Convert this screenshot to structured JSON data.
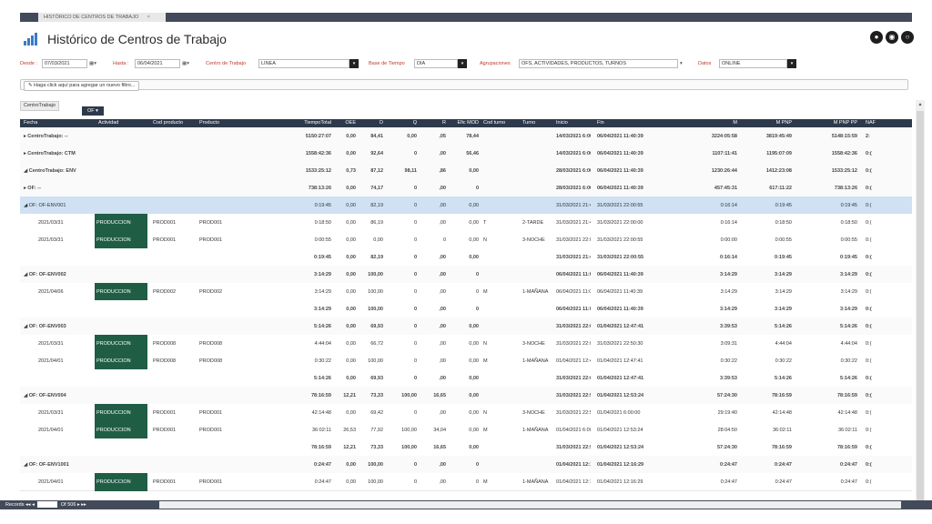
{
  "tab": {
    "label": "HISTÓRICO DE CENTROS DE TRABAJO",
    "close": "×"
  },
  "header": {
    "title": "Histórico de Centros de Trabajo",
    "buttons": [
      "●",
      "◉",
      "○"
    ]
  },
  "filters": {
    "desde_label": "Desde :",
    "desde_value": "07/03/2021",
    "hasta_label": "Hasta :",
    "hasta_value": "06/04/2021",
    "centro_label": "Centro de Trabajo",
    "centro_value": "LINEA",
    "base_label": "Base de Tiempo",
    "base_value": "DIA",
    "agrup_label": "Agrupaciones",
    "agrup_value": "OFS, ACTIVIDADES, PRODUCTOS, TURNOS",
    "datos_label": "Datos",
    "datos_value": "ONLINE"
  },
  "filterbar": {
    "button": "Haga click aquí para agregar un nuevo filtro..."
  },
  "groupzone": {
    "title": "CentroTrabajo",
    "chip": "OF"
  },
  "columns": [
    "Fecha",
    "Actividad",
    "Cod producto",
    "Producto",
    "TiempoTotal",
    "OEE",
    "D",
    "Q",
    "R",
    "Efic MOD",
    "Cod turno",
    "Turno",
    "Inicio",
    "Fin",
    "M",
    "M PNP",
    "M PNP PP",
    "NAF"
  ],
  "rows": [
    {
      "type": "grp",
      "cells": [
        "▸ CentroTrabajo: --",
        "",
        "",
        "",
        "5150:27:07",
        "0,00",
        "84,41",
        "0,00",
        ",05",
        "78,44",
        "",
        "",
        "14/03/2021 6:00:00",
        "06/04/2021 11:40:39",
        "3224:05:58",
        "3819:45:49",
        "5148:15:59",
        "2:"
      ]
    },
    {
      "type": "grp",
      "cells": [
        "▸ CentroTrabajo: CTM",
        "",
        "",
        "",
        "1558:42:36",
        "0,00",
        "92,64",
        "0",
        ",00",
        "56,46",
        "",
        "",
        "14/03/2021 6:00:00",
        "06/04/2021 11:40:39",
        "1107:11:41",
        "1195:07:09",
        "1558:42:36",
        "0:("
      ]
    },
    {
      "type": "grp",
      "cells": [
        "◢ CentroTrabajo: ENV",
        "",
        "",
        "",
        "1533:25:12",
        "0,73",
        "87,12",
        "98,11",
        ",86",
        "0,00",
        "",
        "",
        "28/03/2021 6:00:00",
        "06/04/2021 11:40:39",
        "1230:26:44",
        "1412:23:08",
        "1533:25:12",
        "0:("
      ]
    },
    {
      "type": "grp",
      "cells": [
        "    ▸ OF: --",
        "",
        "",
        "",
        "738:13:26",
        "0,00",
        "74,17",
        "0",
        ",00",
        "0",
        "",
        "",
        "28/03/2021 6:00:00",
        "06/04/2021 11:40:39",
        "457:45:31",
        "617:11:22",
        "738:13:26",
        "0:("
      ]
    },
    {
      "type": "hl",
      "cells": [
        "◢ OF: OF-ENV001",
        "",
        "",
        "",
        "0:19:45",
        "0,00",
        "82,19",
        "0",
        ",00",
        "0,00",
        "",
        "",
        "31/03/2021 21:41:10",
        "31/03/2021 22:00:55",
        "0:16:14",
        "0:19:45",
        "0:19:45",
        "0:("
      ]
    },
    {
      "type": "data",
      "cells": [
        "2021/03/31",
        "PRODUCCION",
        "PROD001",
        "PROD001",
        "0:18:50",
        "0,00",
        "86,19",
        "0",
        ",00",
        "0,00",
        "T",
        "2-TARDE",
        "31/03/2021 21:41:10",
        "31/03/2021 22:00:00",
        "0:16:14",
        "0:18:50",
        "0:18:50",
        "0:("
      ]
    },
    {
      "type": "data",
      "cells": [
        "2021/03/31",
        "PRODUCCION",
        "PROD001",
        "PROD001",
        "0:00:55",
        "0,00",
        "0,00",
        "0",
        "0",
        "0,00",
        "N",
        "3-NOCHE",
        "31/03/2021 22:00:00",
        "31/03/2021 22:00:55",
        "0:00:00",
        "0:00:55",
        "0:00:55",
        "0:("
      ]
    },
    {
      "type": "sum",
      "cells": [
        "",
        "",
        "",
        "",
        "0:19:45",
        "0,00",
        "82,19",
        "0",
        ",00",
        "0,00",
        "",
        "",
        "31/03/2021 21:41:10",
        "31/03/2021 22:00:55",
        "0:16:14",
        "0:19:45",
        "0:19:45",
        "0:("
      ]
    },
    {
      "type": "grp",
      "cells": [
        "◢ OF: OF-ENV002",
        "",
        "",
        "",
        "3:14:29",
        "0,00",
        "100,00",
        "0",
        ",00",
        "0",
        "",
        "",
        "06/04/2021 11:07:41",
        "06/04/2021 11:40:39",
        "3:14:29",
        "3:14:29",
        "3:14:29",
        "0:("
      ]
    },
    {
      "type": "data",
      "cells": [
        "2021/04/06",
        "PRODUCCION",
        "PROD002",
        "PROD002",
        "3:14:29",
        "0,00",
        "100,00",
        "0",
        ",00",
        "0",
        "M",
        "1-MAÑANA",
        "06/04/2021 11:07:41",
        "06/04/2021 11:40:39",
        "3:14:29",
        "3:14:29",
        "3:14:29",
        "0:("
      ]
    },
    {
      "type": "sum",
      "cells": [
        "",
        "",
        "",
        "",
        "3:14:29",
        "0,00",
        "100,00",
        "0",
        ",00",
        "0",
        "",
        "",
        "06/04/2021 11:07:41",
        "06/04/2021 11:40:39",
        "3:14:29",
        "3:14:29",
        "3:14:29",
        "0:("
      ]
    },
    {
      "type": "grp",
      "cells": [
        "◢ OF: OF-ENV003",
        "",
        "",
        "",
        "5:14:26",
        "0,00",
        "69,93",
        "0",
        ",00",
        "0,00",
        "",
        "",
        "31/03/2021 22:01:22",
        "01/04/2021 12:47:41",
        "3:39:53",
        "5:14:26",
        "5:14:26",
        "0:("
      ]
    },
    {
      "type": "data",
      "cells": [
        "2021/03/31",
        "PRODUCCION",
        "PROD008",
        "PROD008",
        "4:44:04",
        "0,00",
        "66,72",
        "0",
        ",00",
        "0,00",
        "N",
        "3-NOCHE",
        "31/03/2021 22:01:22",
        "31/03/2021 22:50:30",
        "3:09:31",
        "4:44:04",
        "4:44:04",
        "0:("
      ]
    },
    {
      "type": "data",
      "cells": [
        "2021/04/01",
        "PRODUCCION",
        "PROD008",
        "PROD008",
        "0:30:22",
        "0,00",
        "100,00",
        "0",
        ",00",
        "0,00",
        "M",
        "1-MAÑANA",
        "01/04/2021 12:42:07",
        "01/04/2021 12:47:41",
        "0:30:22",
        "0:30:22",
        "0:30:22",
        "0:("
      ]
    },
    {
      "type": "sum",
      "cells": [
        "",
        "",
        "",
        "",
        "5:14:26",
        "0,00",
        "69,93",
        "0",
        ",00",
        "0,00",
        "",
        "",
        "31/03/2021 22:01:22",
        "01/04/2021 12:47:41",
        "3:39:53",
        "5:14:26",
        "5:14:26",
        "0:("
      ]
    },
    {
      "type": "grp",
      "cells": [
        "◢ OF: OF-ENV004",
        "",
        "",
        "",
        "78:16:59",
        "12,21",
        "73,33",
        "100,00",
        "16,65",
        "0,00",
        "",
        "",
        "31/03/2021 22:51:25",
        "01/04/2021 12:53:24",
        "57:24:30",
        "78:16:59",
        "78:16:59",
        "0:("
      ]
    },
    {
      "type": "data",
      "cells": [
        "2021/03/31",
        "PRODUCCION",
        "PROD001",
        "PROD001",
        "42:14:48",
        "0,00",
        "69,42",
        "0",
        ",00",
        "0,00",
        "N",
        "3-NOCHE",
        "31/03/2021 22:51:25",
        "01/04/2021 6:00:00",
        "29:19:40",
        "42:14:48",
        "42:14:48",
        "0:("
      ]
    },
    {
      "type": "data",
      "cells": [
        "2021/04/01",
        "PRODUCCION",
        "PROD001",
        "PROD001",
        "36:02:11",
        "26,53",
        "77,92",
        "100,00",
        "34,04",
        "0,00",
        "M",
        "1-MAÑANA",
        "01/04/2021 6:00:00",
        "01/04/2021 12:53:24",
        "28:04:50",
        "36:02:11",
        "36:02:11",
        "0:("
      ]
    },
    {
      "type": "sum",
      "cells": [
        "",
        "",
        "",
        "",
        "78:16:59",
        "12,21",
        "73,33",
        "100,00",
        "16,65",
        "0,00",
        "",
        "",
        "31/03/2021 22:51:25",
        "01/04/2021 12:53:24",
        "57:24:30",
        "78:16:59",
        "78:16:59",
        "0:("
      ]
    },
    {
      "type": "grp",
      "cells": [
        "◢ OF: OF-ENV1001",
        "",
        "",
        "",
        "0:24:47",
        "0,00",
        "100,00",
        "0",
        ",00",
        "0",
        "",
        "",
        "01/04/2021 12:11:51",
        "01/04/2021 12:16:29",
        "0:24:47",
        "0:24:47",
        "0:24:47",
        "0:("
      ]
    },
    {
      "type": "data",
      "cells": [
        "2021/04/01",
        "PRODUCCION",
        "PROD001",
        "PROD001",
        "0:24:47",
        "0,00",
        "100,00",
        "0",
        ",00",
        "0",
        "M",
        "1-MAÑANA",
        "01/04/2021 12:11:51",
        "01/04/2021 12:16:29",
        "0:24:47",
        "0:24:47",
        "0:24:47",
        "0:("
      ]
    }
  ],
  "footer": {
    "records_label": "Records",
    "first": "◂◂",
    "prev": "◂",
    "of": "Of 506",
    "next": "▸",
    "last": "▸▸"
  },
  "colors": {
    "header_bg": "#2d3a4b",
    "activity_bg": "#1f5e45",
    "highlight_row": "#cfe1f3",
    "label_red": "#c0392b"
  }
}
